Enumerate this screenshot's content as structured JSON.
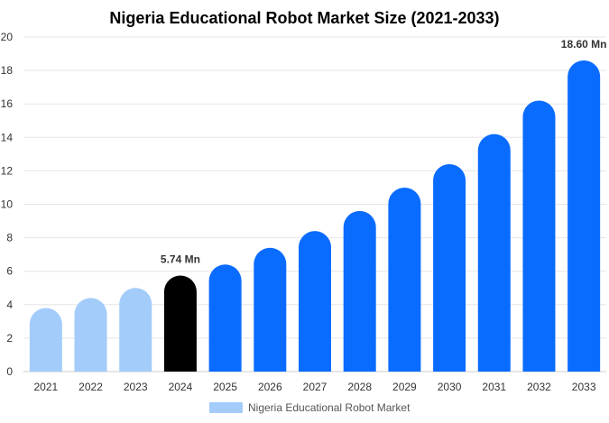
{
  "chart_data": {
    "type": "bar",
    "title": "Nigeria Educational Robot Market Size (2021-2033)",
    "categories": [
      "2021",
      "2022",
      "2023",
      "2024",
      "2025",
      "2026",
      "2027",
      "2028",
      "2029",
      "2030",
      "2031",
      "2032",
      "2033"
    ],
    "series": [
      {
        "name": "Nigeria Educational Robot Market",
        "values": [
          3.8,
          4.4,
          5.0,
          5.74,
          6.4,
          7.4,
          8.4,
          9.6,
          11.0,
          12.4,
          14.2,
          16.2,
          18.6
        ]
      }
    ],
    "data_labels": [
      {
        "category": "2024",
        "text": "5.74 Mn"
      },
      {
        "category": "2033",
        "text": "18.60 Mn"
      }
    ],
    "ylim": [
      0,
      20
    ],
    "yticks": [
      0,
      2,
      4,
      6,
      8,
      10,
      12,
      14,
      16,
      18,
      20
    ],
    "grid": true,
    "legend": "bottom-center",
    "colors": {
      "historical": "#a3ccfa",
      "current": "#000000",
      "forecast": "#0a6cff",
      "legend_swatch": "#a3ccfa"
    },
    "bar_color_groups": [
      "historical",
      "historical",
      "historical",
      "current",
      "forecast",
      "forecast",
      "forecast",
      "forecast",
      "forecast",
      "forecast",
      "forecast",
      "forecast",
      "forecast"
    ]
  }
}
